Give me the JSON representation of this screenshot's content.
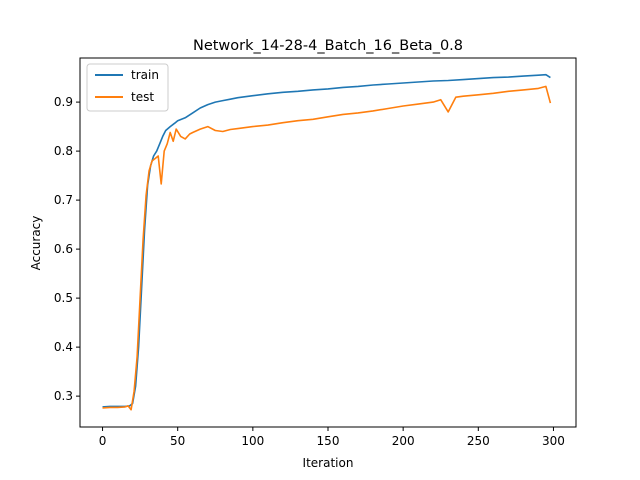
{
  "chart_data": {
    "type": "line",
    "title": "Network_14-28-4_Batch_16_Beta_0.8",
    "xlabel": "Iteration",
    "ylabel": "Accuracy",
    "xlim": [
      -15,
      315
    ],
    "ylim": [
      0.237,
      0.99
    ],
    "xticks": [
      0,
      50,
      100,
      150,
      200,
      250,
      300
    ],
    "yticks": [
      0.3,
      0.4,
      0.5,
      0.6,
      0.7,
      0.8,
      0.9
    ],
    "xtick_labels": [
      "0",
      "50",
      "100",
      "150",
      "200",
      "250",
      "300"
    ],
    "ytick_labels": [
      "0.3",
      "0.4",
      "0.5",
      "0.6",
      "0.7",
      "0.8",
      "0.9"
    ],
    "grid": false,
    "legend_position": "top-left",
    "series": [
      {
        "name": "train",
        "color": "#1f77b4",
        "points": [
          [
            0,
            0.278
          ],
          [
            5,
            0.279
          ],
          [
            10,
            0.279
          ],
          [
            15,
            0.279
          ],
          [
            18,
            0.28
          ],
          [
            20,
            0.285
          ],
          [
            22,
            0.32
          ],
          [
            24,
            0.4
          ],
          [
            26,
            0.52
          ],
          [
            28,
            0.64
          ],
          [
            30,
            0.73
          ],
          [
            32,
            0.77
          ],
          [
            34,
            0.79
          ],
          [
            36,
            0.8
          ],
          [
            38,
            0.815
          ],
          [
            40,
            0.83
          ],
          [
            42,
            0.842
          ],
          [
            45,
            0.85
          ],
          [
            48,
            0.857
          ],
          [
            50,
            0.862
          ],
          [
            55,
            0.868
          ],
          [
            60,
            0.878
          ],
          [
            65,
            0.888
          ],
          [
            70,
            0.895
          ],
          [
            75,
            0.9
          ],
          [
            80,
            0.903
          ],
          [
            85,
            0.906
          ],
          [
            90,
            0.909
          ],
          [
            95,
            0.911
          ],
          [
            100,
            0.913
          ],
          [
            110,
            0.917
          ],
          [
            120,
            0.92
          ],
          [
            130,
            0.922
          ],
          [
            140,
            0.925
          ],
          [
            150,
            0.927
          ],
          [
            160,
            0.93
          ],
          [
            170,
            0.932
          ],
          [
            180,
            0.935
          ],
          [
            190,
            0.937
          ],
          [
            200,
            0.939
          ],
          [
            210,
            0.941
          ],
          [
            220,
            0.943
          ],
          [
            230,
            0.944
          ],
          [
            240,
            0.946
          ],
          [
            250,
            0.948
          ],
          [
            260,
            0.95
          ],
          [
            270,
            0.951
          ],
          [
            280,
            0.953
          ],
          [
            290,
            0.955
          ],
          [
            295,
            0.956
          ],
          [
            298,
            0.95
          ]
        ]
      },
      {
        "name": "test",
        "color": "#ff7f0e",
        "points": [
          [
            0,
            0.276
          ],
          [
            5,
            0.277
          ],
          [
            10,
            0.277
          ],
          [
            15,
            0.278
          ],
          [
            17,
            0.28
          ],
          [
            19,
            0.272
          ],
          [
            21,
            0.31
          ],
          [
            23,
            0.38
          ],
          [
            25,
            0.5
          ],
          [
            27,
            0.62
          ],
          [
            29,
            0.71
          ],
          [
            31,
            0.76
          ],
          [
            33,
            0.78
          ],
          [
            35,
            0.785
          ],
          [
            37,
            0.79
          ],
          [
            39,
            0.733
          ],
          [
            41,
            0.8
          ],
          [
            43,
            0.815
          ],
          [
            45,
            0.838
          ],
          [
            47,
            0.82
          ],
          [
            49,
            0.845
          ],
          [
            52,
            0.83
          ],
          [
            55,
            0.825
          ],
          [
            58,
            0.835
          ],
          [
            60,
            0.838
          ],
          [
            65,
            0.845
          ],
          [
            70,
            0.85
          ],
          [
            75,
            0.842
          ],
          [
            80,
            0.84
          ],
          [
            85,
            0.844
          ],
          [
            90,
            0.846
          ],
          [
            95,
            0.848
          ],
          [
            100,
            0.85
          ],
          [
            110,
            0.853
          ],
          [
            120,
            0.858
          ],
          [
            130,
            0.862
          ],
          [
            140,
            0.865
          ],
          [
            150,
            0.87
          ],
          [
            160,
            0.875
          ],
          [
            170,
            0.878
          ],
          [
            180,
            0.882
          ],
          [
            190,
            0.887
          ],
          [
            200,
            0.892
          ],
          [
            210,
            0.896
          ],
          [
            220,
            0.9
          ],
          [
            225,
            0.905
          ],
          [
            230,
            0.88
          ],
          [
            235,
            0.91
          ],
          [
            240,
            0.912
          ],
          [
            250,
            0.915
          ],
          [
            260,
            0.918
          ],
          [
            270,
            0.922
          ],
          [
            280,
            0.925
          ],
          [
            290,
            0.928
          ],
          [
            295,
            0.932
          ],
          [
            298,
            0.898
          ]
        ]
      }
    ]
  }
}
